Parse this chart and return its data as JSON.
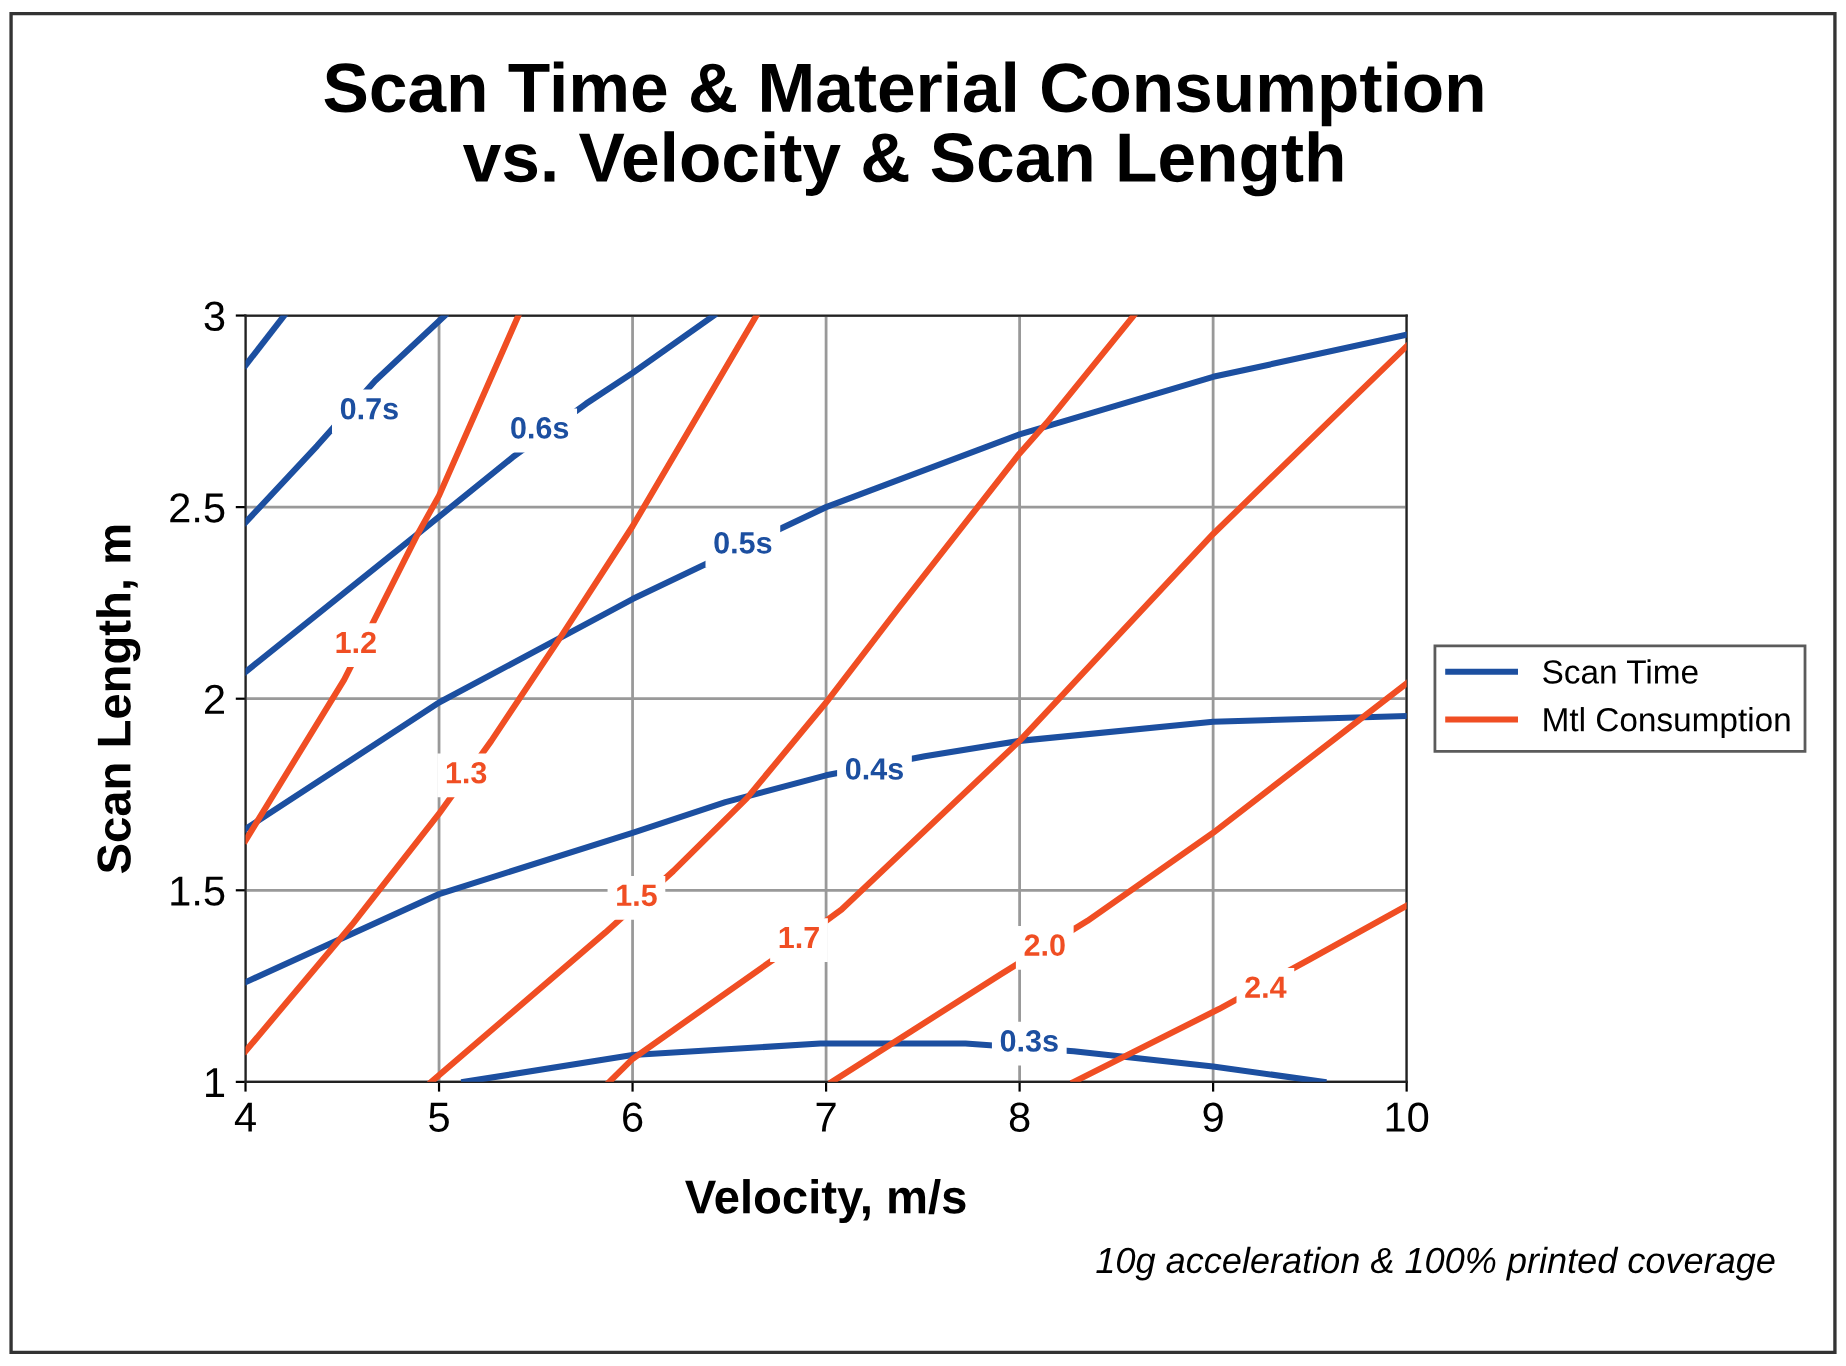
{
  "chart_data": {
    "type": "line",
    "title": "Scan Time & Material Consumption\nvs. Velocity & Scan Length",
    "xlabel": "Velocity, m/s",
    "ylabel": "Scan Length, m",
    "xlim": [
      4,
      10
    ],
    "ylim": [
      1,
      3
    ],
    "xticks": [
      4,
      5,
      6,
      7,
      8,
      9,
      10
    ],
    "yticks": [
      1,
      1.5,
      2,
      2.5,
      3
    ],
    "grid": true,
    "legend": "right",
    "marker": "none",
    "line_style": "solid",
    "series": [
      {
        "name": "Scan Time",
        "color": "#1c4fa0",
        "x": [
          5.13,
          6.0,
          6.97,
          7.72,
          8.28,
          9.0,
          9.57
        ],
        "values": [
          1.0,
          1.07,
          1.1,
          1.1,
          1.08,
          1.04,
          1.0
        ]
      },
      {
        "color": "#1c4fa0",
        "x": [
          4,
          5,
          6,
          6.48,
          7,
          7.51,
          8,
          9,
          10
        ],
        "values": [
          1.26,
          1.49,
          1.65,
          1.73,
          1.8,
          1.85,
          1.89,
          1.94,
          1.955
        ]
      },
      {
        "color": "#1c4fa0",
        "x": [
          4,
          5,
          6,
          6.33,
          7,
          8,
          9,
          10
        ],
        "values": [
          1.66,
          1.99,
          2.26,
          2.34,
          2.5,
          2.69,
          2.84,
          2.95
        ]
      },
      {
        "color": "#1c4fa0",
        "x": [
          4,
          4.89,
          5.38,
          5.76,
          6.0,
          6.42
        ],
        "values": [
          2.07,
          2.43,
          2.63,
          2.77,
          2.85,
          3.0
        ]
      },
      {
        "color": "#1c4fa0",
        "x": [
          4,
          4.37,
          4.67,
          5.03
        ],
        "values": [
          2.46,
          2.66,
          2.83,
          3.0
        ]
      },
      {
        "color": "#1c4fa0",
        "x": [
          4,
          4.2
        ],
        "values": [
          2.87,
          3.0
        ]
      },
      {
        "name": "Mtl Consumption",
        "color": "#f04e23",
        "x": [
          4,
          4.51,
          4.89,
          5.0,
          5.41
        ],
        "values": [
          1.63,
          2.05,
          2.43,
          2.53,
          3.0
        ]
      },
      {
        "color": "#f04e23",
        "x": [
          4,
          4.55,
          5,
          5.27,
          5.64,
          6,
          6.64
        ],
        "values": [
          1.08,
          1.41,
          1.7,
          1.89,
          2.17,
          2.45,
          3.0
        ]
      },
      {
        "color": "#f04e23",
        "x": [
          4.96,
          5.86,
          6.21,
          6.59,
          7.0,
          7.38,
          8.0,
          8.14,
          8.59
        ],
        "values": [
          1.0,
          1.39,
          1.55,
          1.74,
          1.99,
          2.24,
          2.64,
          2.72,
          3.0
        ]
      },
      {
        "color": "#f04e23",
        "x": [
          5.88,
          6.0,
          6.73,
          7.08,
          8,
          9,
          10
        ],
        "values": [
          1.0,
          1.06,
          1.32,
          1.45,
          1.89,
          2.43,
          2.92
        ]
      },
      {
        "color": "#f04e23",
        "x": [
          7.03,
          7.9,
          8.35,
          9,
          10
        ],
        "values": [
          1.0,
          1.28,
          1.42,
          1.65,
          2.04
        ]
      },
      {
        "color": "#f04e23",
        "x": [
          8.28,
          9.03,
          9.5,
          10
        ],
        "values": [
          1.0,
          1.19,
          1.32,
          1.46
        ]
      }
    ],
    "annotations": [
      {
        "text": "0.7s",
        "x": 4.64,
        "y": 2.75
      },
      {
        "text": "0.6s",
        "x": 5.52,
        "y": 2.7
      },
      {
        "text": "0.5s",
        "x": 6.57,
        "y": 2.4
      },
      {
        "text": "0.4s",
        "x": 7.25,
        "y": 1.81
      },
      {
        "text": "0.3s",
        "x": 8.05,
        "y": 1.1
      },
      {
        "text": "1.2",
        "x": 4.57,
        "y": 2.14
      },
      {
        "text": "1.3",
        "x": 5.14,
        "y": 1.8
      },
      {
        "text": "1.5",
        "x": 6.02,
        "y": 1.48
      },
      {
        "text": "1.7",
        "x": 6.86,
        "y": 1.37
      },
      {
        "text": "2.0",
        "x": 8.13,
        "y": 1.35
      },
      {
        "text": "2.4",
        "x": 9.27,
        "y": 1.24
      },
      "10g acceleration & 100% printed coverage"
    ]
  }
}
